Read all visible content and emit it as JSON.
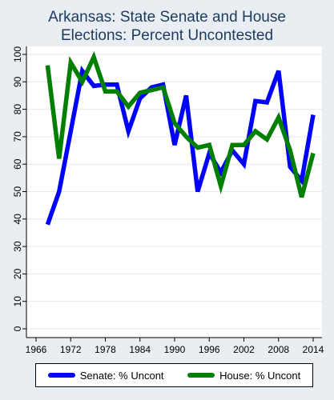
{
  "chart_data": {
    "type": "line",
    "title_lines": [
      "Arkansas: State Senate and House",
      "Elections: Percent Uncontested"
    ],
    "xlabel": "",
    "ylabel": "",
    "xlim": [
      1966,
      2014
    ],
    "ylim": [
      0,
      100
    ],
    "x_ticks": [
      "1966",
      "1972",
      "1978",
      "1984",
      "1990",
      "1996",
      "2002",
      "2008",
      "2014"
    ],
    "y_ticks": [
      "0",
      "10",
      "20",
      "30",
      "40",
      "50",
      "60",
      "70",
      "80",
      "90",
      "100"
    ],
    "grid": true,
    "legend_position": "bottom",
    "series": [
      {
        "name": "Senate: % Uncont",
        "color": "#0000ff",
        "x": [
          1968,
          1970,
          1972,
          1974,
          1976,
          1978,
          1980,
          1982,
          1984,
          1986,
          1988,
          1990,
          1992,
          1994,
          1996,
          1998,
          2000,
          2002,
          2004,
          2006,
          2008,
          2010,
          2012,
          2014
        ],
        "y": [
          38,
          50,
          72,
          94,
          88.5,
          89,
          89,
          72,
          84,
          88,
          89,
          67,
          85,
          50,
          64,
          57,
          65,
          60,
          83,
          82.5,
          94,
          59,
          54,
          78
        ]
      },
      {
        "name": "House: % Uncont",
        "color": "#007f00",
        "x": [
          1968,
          1970,
          1972,
          1974,
          1976,
          1978,
          1980,
          1982,
          1984,
          1986,
          1988,
          1990,
          1992,
          1994,
          1996,
          1998,
          2000,
          2002,
          2004,
          2006,
          2008,
          2010,
          2012,
          2014
        ],
        "y": [
          96,
          62,
          97,
          90,
          99,
          86.5,
          86.5,
          81,
          86,
          87,
          88,
          75,
          70,
          66,
          67,
          52,
          67,
          67,
          72,
          69,
          77,
          65,
          48,
          64
        ]
      }
    ]
  }
}
